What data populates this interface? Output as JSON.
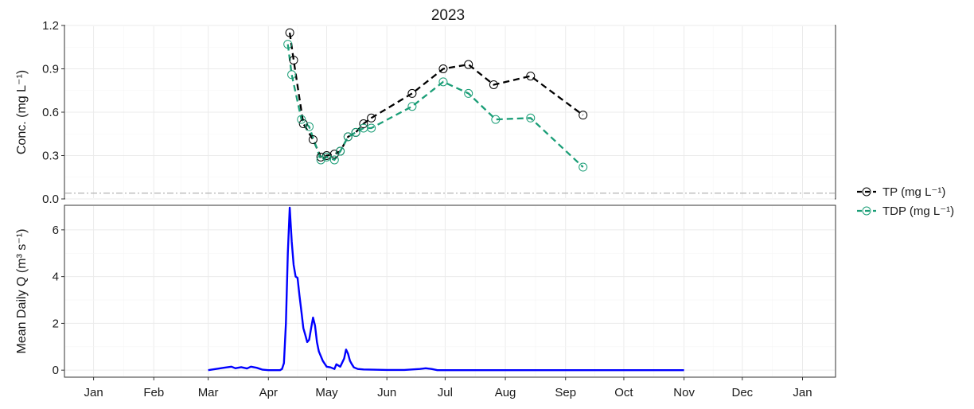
{
  "chart_data": [
    {
      "type": "line",
      "title": "2023",
      "ylabel": "Conc. (mg L⁻¹)",
      "ylim": [
        0.0,
        1.2
      ],
      "yticks": [
        0.0,
        0.3,
        0.6,
        0.9,
        1.2
      ],
      "ytick_labels": [
        "0.0",
        "0.3",
        "0.6",
        "0.9",
        "1.2"
      ],
      "reference_line": 0.04,
      "grid": true,
      "series": [
        {
          "name": "TP (mg L⁻¹)",
          "color": "#000000",
          "dates": [
            "2023-04-12",
            "2023-04-14",
            "2023-04-19",
            "2023-04-24",
            "2023-04-28",
            "2023-05-01",
            "2023-05-05",
            "2023-05-08",
            "2023-05-12",
            "2023-05-16",
            "2023-05-20",
            "2023-05-24",
            "2023-06-14",
            "2023-06-30",
            "2023-07-13",
            "2023-07-26",
            "2023-08-14",
            "2023-09-10"
          ],
          "y": [
            1.15,
            0.96,
            0.52,
            0.41,
            0.29,
            0.3,
            0.31,
            0.33,
            0.43,
            0.46,
            0.52,
            0.56,
            0.73,
            0.9,
            0.93,
            0.79,
            0.85,
            0.58
          ]
        },
        {
          "name": "TDP (mg L⁻¹)",
          "color": "#1b9e77",
          "dates": [
            "2023-04-11",
            "2023-04-13",
            "2023-04-18",
            "2023-04-22",
            "2023-04-28",
            "2023-05-01",
            "2023-05-05",
            "2023-05-08",
            "2023-05-12",
            "2023-05-16",
            "2023-05-20",
            "2023-05-24",
            "2023-06-14",
            "2023-06-30",
            "2023-07-13",
            "2023-07-27",
            "2023-08-14",
            "2023-09-10"
          ],
          "y": [
            1.07,
            0.86,
            0.55,
            0.5,
            0.27,
            0.29,
            0.27,
            0.33,
            0.43,
            0.46,
            0.49,
            0.49,
            0.64,
            0.81,
            0.73,
            0.55,
            0.56,
            0.22
          ]
        }
      ]
    },
    {
      "type": "line",
      "ylabel": "Mean Daily Q (m³ s⁻¹)",
      "ylim": [
        -0.3,
        7.05
      ],
      "yticks": [
        0,
        2,
        4,
        6
      ],
      "ytick_labels": [
        "0",
        "2",
        "4",
        "6"
      ],
      "grid": true,
      "series": [
        {
          "name": "Q",
          "color": "#0000ff",
          "dates": [
            "2023-03-01",
            "2023-03-05",
            "2023-03-09",
            "2023-03-13",
            "2023-03-15",
            "2023-03-18",
            "2023-03-21",
            "2023-03-23",
            "2023-03-26",
            "2023-03-29",
            "2023-04-01",
            "2023-04-04",
            "2023-04-07",
            "2023-04-08",
            "2023-04-09",
            "2023-04-10",
            "2023-04-11",
            "2023-04-12",
            "2023-04-13",
            "2023-04-14",
            "2023-04-15",
            "2023-04-16",
            "2023-04-17",
            "2023-04-18",
            "2023-04-19",
            "2023-04-20",
            "2023-04-21",
            "2023-04-22",
            "2023-04-23",
            "2023-04-24",
            "2023-04-25",
            "2023-04-26",
            "2023-04-27",
            "2023-04-29",
            "2023-05-01",
            "2023-05-03",
            "2023-05-05",
            "2023-05-06",
            "2023-05-08",
            "2023-05-10",
            "2023-05-11",
            "2023-05-12",
            "2023-05-13",
            "2023-05-14",
            "2023-05-15",
            "2023-05-17",
            "2023-05-20",
            "2023-05-25",
            "2023-06-01",
            "2023-06-10",
            "2023-06-18",
            "2023-06-21",
            "2023-06-24",
            "2023-06-27",
            "2023-07-01",
            "2023-08-01",
            "2023-09-01",
            "2023-10-01",
            "2023-11-01"
          ],
          "y": [
            0.0,
            0.05,
            0.1,
            0.15,
            0.08,
            0.13,
            0.07,
            0.15,
            0.1,
            0.02,
            0.0,
            0.0,
            0.0,
            0.05,
            0.3,
            2.0,
            5.0,
            6.95,
            5.5,
            4.5,
            4.0,
            3.95,
            3.2,
            2.5,
            1.8,
            1.5,
            1.2,
            1.3,
            1.8,
            2.25,
            1.9,
            1.2,
            0.8,
            0.4,
            0.15,
            0.12,
            0.05,
            0.25,
            0.15,
            0.5,
            0.88,
            0.7,
            0.4,
            0.25,
            0.12,
            0.05,
            0.03,
            0.02,
            0.01,
            0.01,
            0.05,
            0.08,
            0.05,
            0.0,
            0.0,
            0.0,
            0.0,
            0.0,
            0.0
          ]
        }
      ]
    }
  ],
  "x_axis": {
    "tick_dates": [
      "2023-01-01",
      "2023-02-01",
      "2023-03-01",
      "2023-04-01",
      "2023-05-01",
      "2023-06-01",
      "2023-07-01",
      "2023-08-01",
      "2023-09-01",
      "2023-10-01",
      "2023-11-01",
      "2023-12-01",
      "2024-01-01"
    ],
    "tick_labels": [
      "Jan",
      "Feb",
      "Mar",
      "Apr",
      "May",
      "Jun",
      "Jul",
      "Aug",
      "Sep",
      "Oct",
      "Nov",
      "Dec",
      "Jan"
    ],
    "range": [
      "2022-12-17",
      "2024-01-18"
    ]
  },
  "colors": {
    "reference_line": "#b3b3b3",
    "panel_border": "#333333"
  }
}
